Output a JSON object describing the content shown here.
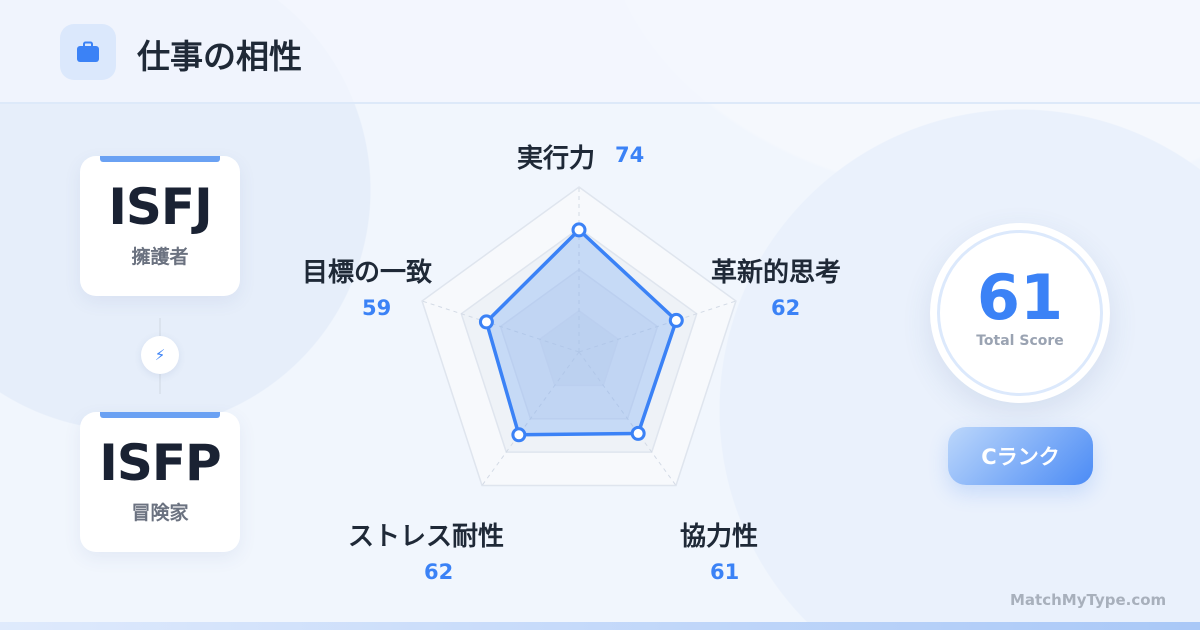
{
  "header": {
    "title": "仕事の相性",
    "icon": "briefcase-icon"
  },
  "types": [
    {
      "code": "ISFJ",
      "name": "擁護者"
    },
    {
      "code": "ISFP",
      "name": "冒険家"
    }
  ],
  "connector_icon": "lightning-icon",
  "chart_data": {
    "type": "radar",
    "max": 100,
    "grid_levels": [
      25,
      50,
      75,
      100
    ],
    "axes": [
      {
        "label": "実行力",
        "value": 74
      },
      {
        "label": "革新的思考",
        "value": 62
      },
      {
        "label": "協力性",
        "value": 61
      },
      {
        "label": "ストレス耐性",
        "value": 62
      },
      {
        "label": "目標の一致",
        "value": 59
      }
    ],
    "colors": {
      "series": "#3b82f6",
      "fill": "rgba(59,130,246,0.22)"
    }
  },
  "score": {
    "value": "61",
    "label": "Total Score"
  },
  "rank": "Cランク",
  "brand": "MatchMyType.com"
}
